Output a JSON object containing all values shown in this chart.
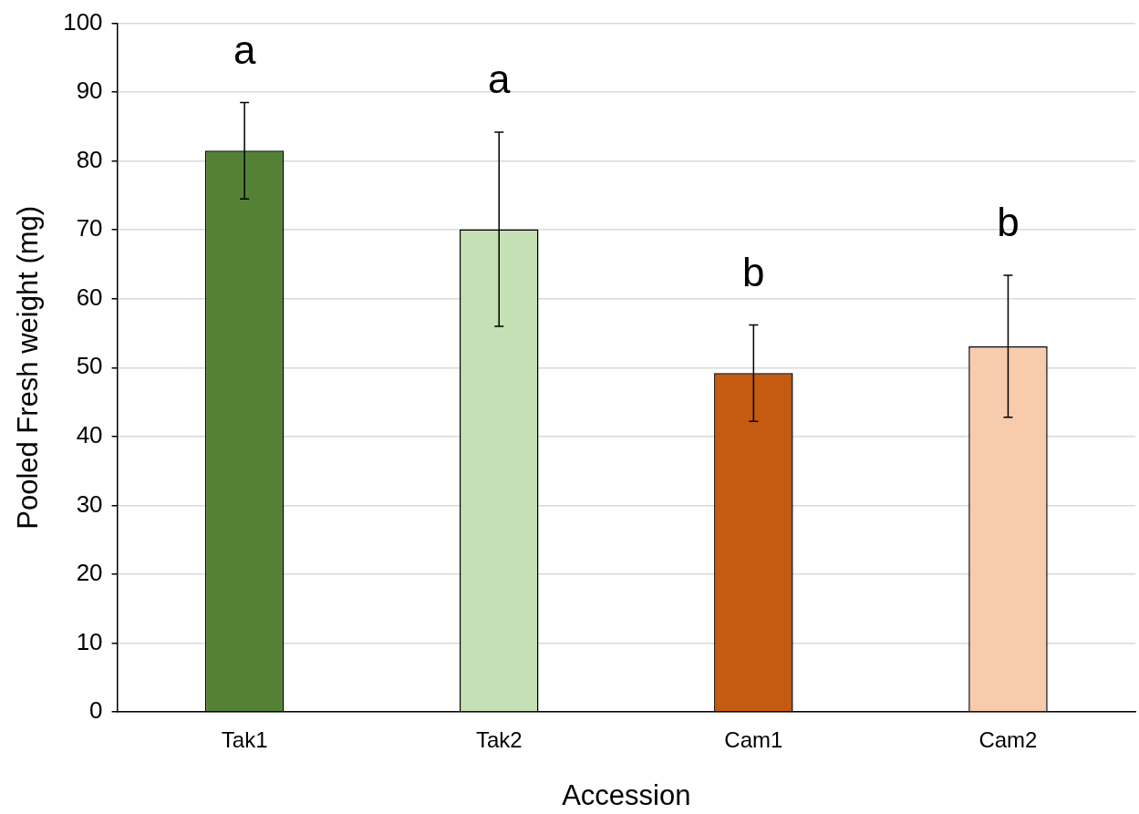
{
  "chart_data": {
    "type": "bar",
    "xlabel": "Accession",
    "ylabel": "Pooled Fresh weight (mg)",
    "categories": [
      "Tak1",
      "Tak2",
      "Cam1",
      "Cam2"
    ],
    "values": [
      81.5,
      70.1,
      49.2,
      53.1
    ],
    "colors": [
      "#548235",
      "#c5e0b4",
      "#c55a11",
      "#f8cbad"
    ],
    "errors": [
      7,
      14.1,
      7,
      10.3
    ],
    "ylim": [
      0,
      100
    ],
    "yticks": [
      0,
      10,
      20,
      30,
      40,
      50,
      60,
      70,
      80,
      90,
      100
    ],
    "grid": "y",
    "legend": false,
    "annotations": [
      "a",
      "a",
      "b",
      "b"
    ]
  }
}
